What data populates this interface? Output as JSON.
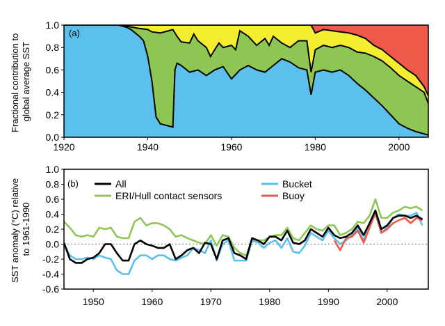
{
  "chart_data": [
    {
      "panel_label": "(a)",
      "type": "area",
      "stacked": true,
      "ylabel": "Fractional contribution to global average SST",
      "ylabel_lines": [
        "Fractional contribution to",
        "global average SST"
      ],
      "xlim": [
        1920,
        2007
      ],
      "ylim": [
        0,
        1
      ],
      "x_ticks": [
        1920,
        1940,
        1960,
        1980,
        2000
      ],
      "y_ticks": [
        0.0,
        0.2,
        0.4,
        0.6,
        0.8,
        1.0
      ],
      "y_tick_labels": [
        "0.0",
        "0.2",
        "0.4",
        "0.6",
        "0.8",
        "1.0"
      ],
      "layer_colors": [
        "#5bc0eb",
        "#8dc653",
        "#f5ee30",
        "#f0584a"
      ],
      "boundaries": [
        {
          "x": [
            1920,
            1933,
            1935,
            1936,
            1937,
            1938,
            1939,
            1940,
            1941,
            1942,
            1943,
            1944,
            1945,
            1946,
            1946.5,
            1947,
            1948,
            1950,
            1952,
            1954,
            1956,
            1958,
            1960,
            1962,
            1964,
            1966,
            1968,
            1970,
            1972,
            1974,
            1976,
            1978,
            1979,
            1980,
            1982,
            1984,
            1986,
            1988,
            1990,
            1992,
            1994,
            1996,
            1998,
            2000,
            2002,
            2004,
            2006,
            2007
          ],
          "y": [
            1.0,
            1.0,
            0.98,
            0.96,
            0.93,
            0.9,
            0.86,
            0.72,
            0.5,
            0.18,
            0.12,
            0.11,
            0.1,
            0.09,
            0.6,
            0.66,
            0.64,
            0.58,
            0.6,
            0.55,
            0.6,
            0.63,
            0.52,
            0.6,
            0.64,
            0.6,
            0.58,
            0.64,
            0.7,
            0.67,
            0.62,
            0.6,
            0.38,
            0.58,
            0.6,
            0.58,
            0.6,
            0.55,
            0.48,
            0.42,
            0.35,
            0.28,
            0.2,
            0.12,
            0.08,
            0.05,
            0.03,
            0.02
          ]
        },
        {
          "x": [
            1920,
            1933,
            1935,
            1938,
            1940,
            1941,
            1943,
            1945,
            1946,
            1947,
            1948,
            1950,
            1951,
            1952,
            1954,
            1955,
            1956,
            1957,
            1958,
            1960,
            1961,
            1962,
            1964,
            1966,
            1968,
            1969,
            1970,
            1972,
            1974,
            1976,
            1978,
            1979,
            1980,
            1982,
            1984,
            1986,
            1988,
            1990,
            1992,
            1994,
            1996,
            1998,
            2000,
            2002,
            2004,
            2006,
            2007
          ],
          "y": [
            1.0,
            1.0,
            0.99,
            0.97,
            0.96,
            0.94,
            0.93,
            0.95,
            0.96,
            0.9,
            0.85,
            0.84,
            0.92,
            0.86,
            0.8,
            0.72,
            0.78,
            0.84,
            0.8,
            0.82,
            0.78,
            0.95,
            0.9,
            0.82,
            0.88,
            0.82,
            0.9,
            0.84,
            0.8,
            0.86,
            0.86,
            0.58,
            0.78,
            0.82,
            0.8,
            0.82,
            0.8,
            0.76,
            0.75,
            0.72,
            0.68,
            0.62,
            0.55,
            0.5,
            0.45,
            0.4,
            0.3
          ]
        },
        {
          "x": [
            1920,
            1979,
            1980,
            1982,
            1984,
            1986,
            1988,
            1990,
            1992,
            1994,
            1996,
            1998,
            2000,
            2002,
            2004,
            2006,
            2007
          ],
          "y": [
            1.0,
            1.0,
            0.93,
            0.96,
            0.95,
            0.94,
            0.93,
            0.91,
            0.88,
            0.82,
            0.78,
            0.72,
            0.66,
            0.6,
            0.55,
            0.45,
            0.37
          ]
        }
      ]
    },
    {
      "panel_label": "(b)",
      "type": "line",
      "ylabel": "SST anomaly (°C) relative to 1961-1990",
      "ylabel_lines": [
        "SST anomaly (°C) relative",
        "to 1961-1990"
      ],
      "xlim": [
        1945,
        2007
      ],
      "ylim": [
        -0.6,
        1.0
      ],
      "x_ticks": [
        1950,
        1960,
        1970,
        1980,
        1990,
        2000
      ],
      "y_ticks": [
        -0.6,
        -0.4,
        -0.2,
        0.0,
        0.2,
        0.4,
        0.6,
        0.8,
        1.0
      ],
      "y_tick_labels": [
        "-0.6",
        "-0.4",
        "-0.2",
        "0.0",
        "0.2",
        "0.4",
        "0.6",
        "0.8",
        "1.0"
      ],
      "zero_line": true,
      "series": [
        {
          "name": "All",
          "color": "#000000",
          "x": [
            1945,
            1946,
            1947,
            1948,
            1949,
            1950,
            1951,
            1952,
            1953,
            1954,
            1955,
            1956,
            1957,
            1958,
            1959,
            1960,
            1961,
            1962,
            1963,
            1964,
            1965,
            1966,
            1967,
            1968,
            1969,
            1970,
            1971,
            1972,
            1973,
            1974,
            1975,
            1976,
            1977,
            1978,
            1979,
            1980,
            1981,
            1982,
            1983,
            1984,
            1985,
            1986,
            1987,
            1988,
            1989,
            1990,
            1991,
            1992,
            1993,
            1994,
            1995,
            1996,
            1997,
            1998,
            1999,
            2000,
            2001,
            2002,
            2003,
            2004,
            2005,
            2006
          ],
          "y": [
            0.02,
            -0.2,
            -0.25,
            -0.25,
            -0.2,
            -0.18,
            -0.12,
            0.0,
            0.0,
            -0.12,
            -0.22,
            -0.22,
            0.0,
            0.05,
            0.0,
            -0.02,
            -0.05,
            -0.05,
            0.0,
            -0.2,
            -0.15,
            -0.08,
            -0.05,
            -0.12,
            0.02,
            0.0,
            -0.2,
            0.05,
            0.08,
            -0.12,
            -0.15,
            -0.2,
            0.08,
            0.05,
            0.0,
            0.1,
            0.1,
            0.05,
            0.18,
            0.02,
            0.0,
            0.05,
            0.2,
            0.15,
            0.1,
            0.22,
            0.12,
            0.08,
            0.1,
            0.15,
            0.25,
            0.12,
            0.28,
            0.45,
            0.2,
            0.25,
            0.35,
            0.38,
            0.38,
            0.35,
            0.38,
            0.33
          ]
        },
        {
          "name": "Bucket",
          "color": "#5bc0eb",
          "x": [
            1945,
            1946,
            1947,
            1948,
            1949,
            1950,
            1951,
            1952,
            1953,
            1954,
            1955,
            1956,
            1957,
            1958,
            1959,
            1960,
            1961,
            1962,
            1963,
            1964,
            1965,
            1966,
            1967,
            1968,
            1969,
            1970,
            1971,
            1972,
            1973,
            1974,
            1975,
            1976,
            1977,
            1978,
            1979,
            1980,
            1981,
            1982,
            1983,
            1984,
            1985,
            1986,
            1987,
            1988,
            1989,
            1990,
            1991,
            1992,
            1993,
            1994,
            1995,
            1996,
            1997,
            1998,
            1999,
            2000,
            2001,
            2002,
            2003,
            2004,
            2005,
            2006
          ],
          "y": [
            0.0,
            -0.15,
            -0.2,
            -0.2,
            -0.18,
            -0.2,
            -0.15,
            -0.18,
            -0.2,
            -0.35,
            -0.4,
            -0.4,
            -0.22,
            -0.15,
            -0.15,
            -0.2,
            -0.15,
            -0.15,
            -0.2,
            -0.22,
            -0.18,
            -0.15,
            -0.05,
            -0.08,
            -0.12,
            0.05,
            -0.22,
            0.0,
            0.05,
            -0.22,
            -0.22,
            -0.22,
            0.05,
            0.02,
            -0.05,
            0.02,
            0.05,
            -0.05,
            0.08,
            -0.1,
            -0.12,
            -0.02,
            0.15,
            0.1,
            0.05,
            0.18,
            0.08,
            0.0,
            0.05,
            0.12,
            0.22,
            0.05,
            0.25,
            0.4,
            0.15,
            0.22,
            0.35,
            0.4,
            0.38,
            0.38,
            0.42,
            0.25
          ]
        },
        {
          "name": "ERI/Hull contact sensors",
          "color": "#8dc653",
          "x": [
            1945,
            1946,
            1947,
            1948,
            1949,
            1950,
            1951,
            1952,
            1953,
            1954,
            1955,
            1956,
            1957,
            1958,
            1959,
            1960,
            1961,
            1962,
            1963,
            1964,
            1965,
            1966,
            1967,
            1968,
            1969,
            1970,
            1971,
            1972,
            1973,
            1974,
            1975,
            1976,
            1977,
            1978,
            1979,
            1980,
            1981,
            1982,
            1983,
            1984,
            1985,
            1986,
            1987,
            1988,
            1989,
            1990,
            1991,
            1992,
            1993,
            1994,
            1995,
            1996,
            1997,
            1998,
            1999,
            2000,
            2001,
            2002,
            2003,
            2004,
            2005,
            2006
          ],
          "y": [
            0.3,
            0.22,
            0.12,
            0.1,
            0.12,
            0.1,
            0.22,
            0.2,
            0.22,
            0.1,
            0.08,
            0.08,
            0.3,
            0.35,
            0.25,
            0.28,
            0.28,
            0.25,
            0.2,
            0.1,
            0.12,
            0.08,
            0.05,
            0.02,
            0.0,
            0.12,
            -0.02,
            0.12,
            0.1,
            -0.05,
            -0.12,
            -0.15,
            0.05,
            0.05,
            0.05,
            0.1,
            0.12,
            0.12,
            0.22,
            0.08,
            0.05,
            0.15,
            0.25,
            0.2,
            0.18,
            0.25,
            0.25,
            0.12,
            0.15,
            0.2,
            0.3,
            0.28,
            0.38,
            0.6,
            0.35,
            0.35,
            0.42,
            0.45,
            0.5,
            0.48,
            0.5,
            0.45
          ]
        },
        {
          "name": "Buoy",
          "color": "#f0584a",
          "x": [
            1991,
            1992,
            1993,
            1994,
            1995,
            1996,
            1997,
            1998,
            1999,
            2000,
            2001,
            2002,
            2003,
            2004,
            2005,
            2006
          ],
          "y": [
            0.05,
            -0.08,
            0.08,
            0.1,
            0.18,
            0.02,
            0.22,
            0.42,
            0.15,
            0.2,
            0.28,
            0.32,
            0.35,
            0.28,
            0.35,
            0.32
          ]
        }
      ],
      "legend": {
        "placement": "top, two columns"
      }
    }
  ]
}
